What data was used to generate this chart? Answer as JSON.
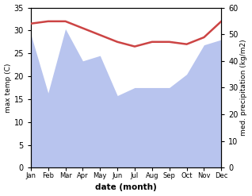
{
  "months": [
    "Jan",
    "Feb",
    "Mar",
    "Apr",
    "May",
    "Jun",
    "Jul",
    "Aug",
    "Sep",
    "Oct",
    "Nov",
    "Dec"
  ],
  "temperature": [
    31.5,
    32.0,
    32.0,
    30.5,
    29.0,
    27.5,
    26.5,
    27.5,
    27.5,
    27.0,
    28.5,
    32.0
  ],
  "precipitation": [
    50,
    28,
    52,
    40,
    42,
    27,
    30,
    30,
    30,
    35,
    46,
    48
  ],
  "temp_color": "#cc4444",
  "precip_color": "#b8c4ee",
  "temp_ylim": [
    0,
    35
  ],
  "precip_ylim": [
    0,
    60
  ],
  "temp_yticks": [
    0,
    5,
    10,
    15,
    20,
    25,
    30,
    35
  ],
  "precip_yticks": [
    0,
    10,
    20,
    30,
    40,
    50,
    60
  ],
  "xlabel": "date (month)",
  "ylabel_left": "max temp (C)",
  "ylabel_right": "med. precipitation (kg/m2)",
  "fig_width": 3.18,
  "fig_height": 2.47,
  "dpi": 100
}
